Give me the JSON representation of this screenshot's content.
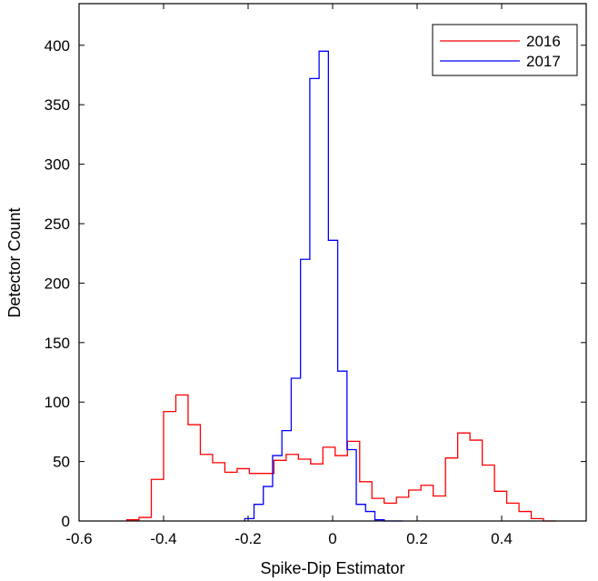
{
  "chart_data": {
    "type": "histogram",
    "xlabel": "Spike-Dip Estimator",
    "ylabel": "Detector Count",
    "xlim": [
      -0.6,
      0.6
    ],
    "ylim": [
      0,
      435
    ],
    "xticks": [
      -0.6,
      -0.4,
      -0.2,
      0,
      0.2,
      0.4
    ],
    "xtick_labels": [
      "-0.6",
      "-0.4",
      "-0.2",
      "0",
      "0.2",
      "0.4"
    ],
    "yticks": [
      0,
      50,
      100,
      150,
      200,
      250,
      300,
      350,
      400
    ],
    "ytick_labels": [
      "0",
      "50",
      "100",
      "150",
      "200",
      "250",
      "300",
      "350",
      "400"
    ],
    "legend_position": "top-right",
    "series": [
      {
        "name": "2016",
        "color": "#ff0000",
        "bin_edges": [
          -0.487,
          -0.458,
          -0.429,
          -0.4,
          -0.371,
          -0.342,
          -0.313,
          -0.284,
          -0.255,
          -0.226,
          -0.197,
          -0.168,
          -0.139,
          -0.11,
          -0.081,
          -0.052,
          -0.023,
          0.006,
          0.035,
          0.064,
          0.093,
          0.122,
          0.151,
          0.18,
          0.209,
          0.238,
          0.267,
          0.296,
          0.325,
          0.354,
          0.383,
          0.412,
          0.441,
          0.47,
          0.499,
          0.528
        ],
        "counts": [
          1,
          3,
          35,
          92,
          106,
          81,
          56,
          49,
          41,
          44,
          40,
          40,
          51,
          56,
          52,
          48,
          62,
          55,
          67,
          33,
          19,
          15,
          20,
          26,
          30,
          21,
          53,
          74,
          68,
          47,
          25,
          15,
          8,
          2,
          0
        ]
      },
      {
        "name": "2017",
        "color": "#0000ff",
        "bin_edges": [
          -0.208,
          -0.186,
          -0.164,
          -0.142,
          -0.12,
          -0.098,
          -0.076,
          -0.054,
          -0.032,
          -0.01,
          0.012,
          0.034,
          0.056,
          0.078,
          0.1,
          0.122,
          0.144,
          0.166
        ],
        "counts": [
          2,
          14,
          29,
          55,
          76,
          120,
          220,
          372,
          395,
          236,
          126,
          60,
          14,
          8,
          1,
          0,
          0
        ]
      }
    ]
  }
}
